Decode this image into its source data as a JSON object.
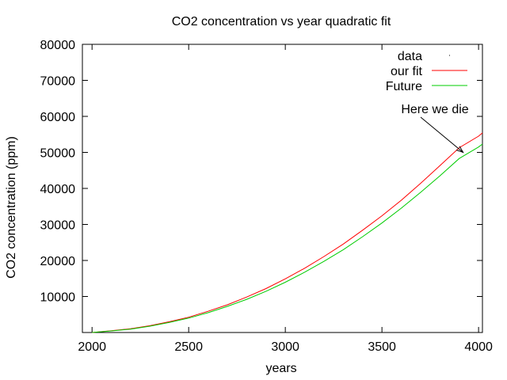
{
  "chart_data": {
    "type": "line",
    "title": "CO2 concentration vs year quadratic fit",
    "xlabel": "years",
    "ylabel": "CO2 concentration (ppm)",
    "xlim": [
      1950,
      4020
    ],
    "ylim": [
      0,
      80000
    ],
    "xticks": [
      2000,
      2500,
      3000,
      3500,
      4000
    ],
    "yticks": [
      10000,
      20000,
      30000,
      40000,
      50000,
      60000,
      70000,
      80000
    ],
    "grid": false,
    "legend_position": "top-right",
    "series": [
      {
        "name": "data",
        "style": "points",
        "color": "#000000",
        "x": [],
        "y": []
      },
      {
        "name": "our fit",
        "style": "line",
        "color": "#ff0000",
        "x": [
          2000,
          2100,
          2200,
          2300,
          2400,
          2500,
          2600,
          2700,
          2800,
          2900,
          3000,
          3100,
          3200,
          3300,
          3400,
          3500,
          3600,
          3700,
          3800,
          3900,
          4000,
          4020
        ],
        "y": [
          0,
          500,
          1050,
          1900,
          3000,
          4250,
          5900,
          7700,
          9850,
          12200,
          14900,
          17850,
          21100,
          24550,
          28400,
          32400,
          36700,
          41400,
          46300,
          51300,
          54500,
          55400
        ]
      },
      {
        "name": "Future",
        "style": "line",
        "color": "#00cc00",
        "x": [
          2000,
          2100,
          2200,
          2300,
          2400,
          2500,
          2600,
          2700,
          2800,
          2900,
          3000,
          3100,
          3200,
          3300,
          3400,
          3500,
          3600,
          3700,
          3800,
          3900,
          4000,
          4020
        ],
        "y": [
          0,
          450,
          950,
          1750,
          2800,
          4000,
          5500,
          7250,
          9200,
          11450,
          13950,
          16750,
          19750,
          23000,
          26600,
          30400,
          34500,
          38900,
          43500,
          48300,
          51500,
          52300
        ]
      }
    ],
    "annotations": [
      {
        "text": "Here we die",
        "arrow_to": [
          3920,
          50000
        ]
      }
    ]
  }
}
